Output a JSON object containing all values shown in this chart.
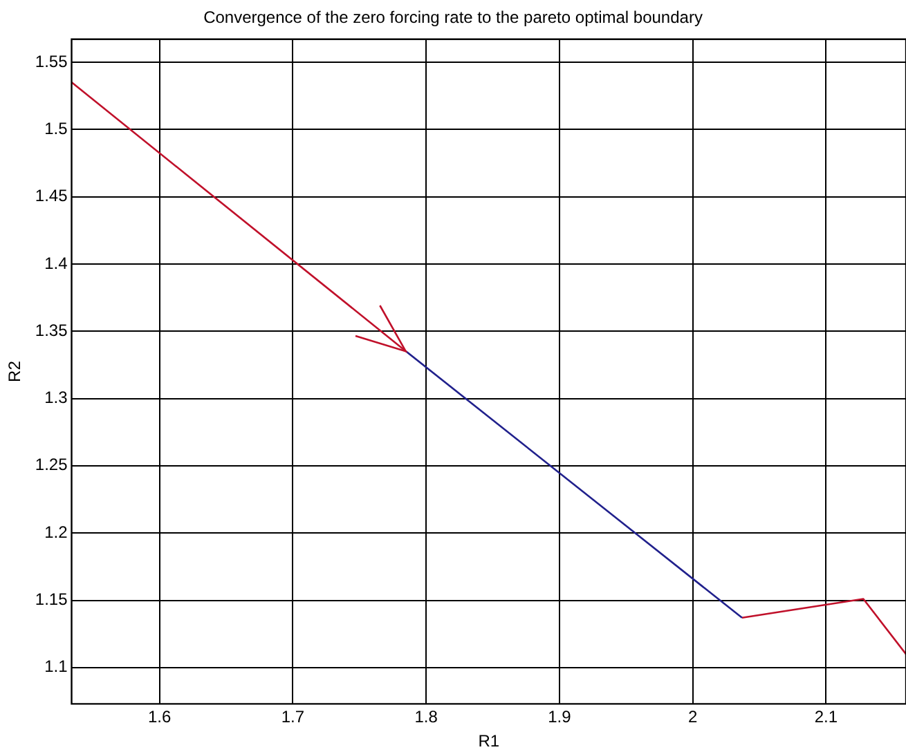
{
  "chart_data": {
    "type": "line",
    "title": "Convergence of the zero forcing rate to the pareto optimal boundary",
    "xlabel": "R1",
    "ylabel": "R2",
    "series": [
      {
        "color": "#c0102a",
        "x": [
          1.534,
          1.785
        ],
        "values": [
          1.535,
          1.335
        ]
      },
      {
        "color": "#20208c",
        "x": [
          1.785,
          2.037
        ],
        "values": [
          1.335,
          1.137
        ]
      },
      {
        "color": "#c0102a",
        "x": [
          2.037,
          2.128,
          2.16
        ],
        "values": [
          1.137,
          1.151,
          1.11
        ]
      }
    ],
    "xlim": [
      1.534,
      2.16
    ],
    "xticks": [
      1.6,
      1.7,
      1.8,
      1.9,
      2,
      2.1
    ],
    "ylim": [
      1.073,
      1.567
    ],
    "yticks": [
      1.1,
      1.15,
      1.2,
      1.25,
      1.3,
      1.35,
      1.4,
      1.45,
      1.5,
      1.55
    ],
    "grid": true,
    "legend": false,
    "marker": "none",
    "line_style": "solid"
  }
}
